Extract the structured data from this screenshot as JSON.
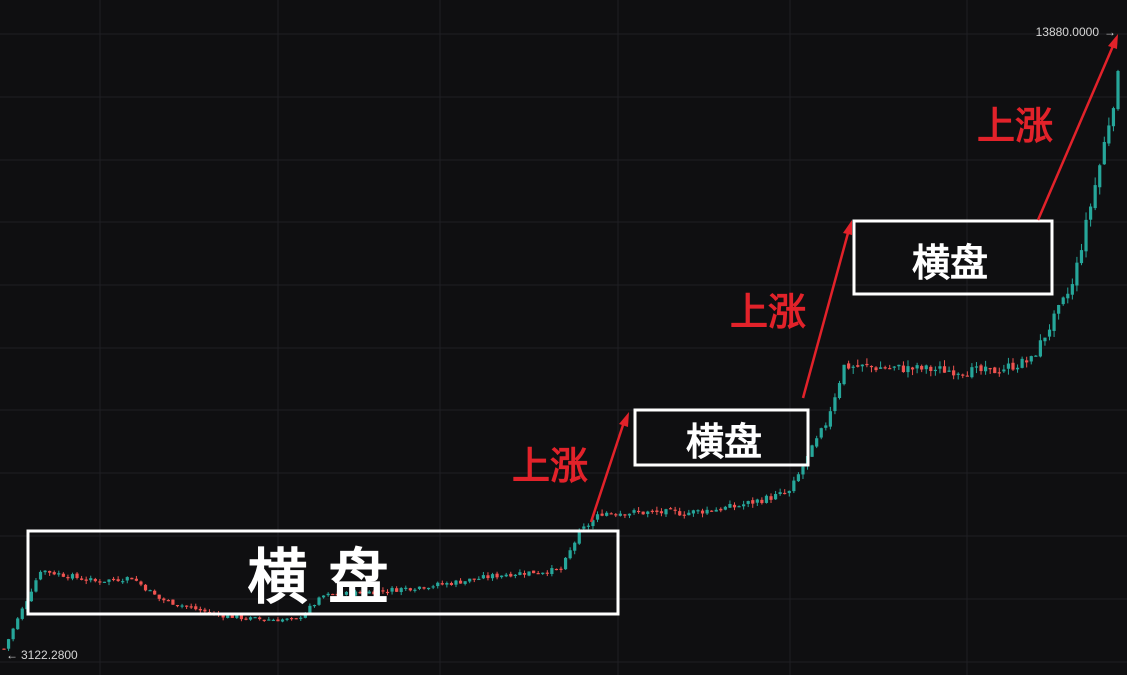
{
  "chart_data": {
    "type": "candlestick",
    "price_range": [
      3122.28,
      13880.0
    ],
    "max_price_label": "13880.0000",
    "max_arrow": "→",
    "min_price_label": "3122.2800",
    "min_arrow": "←",
    "grid": true,
    "colors": {
      "background": "#0f0f11",
      "up": "#26a69a",
      "down": "#ef5350",
      "grid": "#1f1f24",
      "annotation_arrow": "#e2222a",
      "box_border": "#ffffff"
    },
    "annotations": {
      "consolidation_label_wide": "横 盘",
      "consolidation_label": "横盘",
      "rise_label": "上涨"
    },
    "price_path": [
      {
        "candle": 0,
        "price": 3180
      },
      {
        "candle": 8,
        "price": 4550
      },
      {
        "candle": 20,
        "price": 4350
      },
      {
        "candle": 28,
        "price": 4420
      },
      {
        "candle": 34,
        "price": 4050
      },
      {
        "candle": 46,
        "price": 3780
      },
      {
        "candle": 54,
        "price": 3700
      },
      {
        "candle": 64,
        "price": 3680
      },
      {
        "candle": 70,
        "price": 4100
      },
      {
        "candle": 82,
        "price": 4180
      },
      {
        "candle": 96,
        "price": 4300
      },
      {
        "candle": 110,
        "price": 4480
      },
      {
        "candle": 122,
        "price": 4550
      },
      {
        "candle": 126,
        "price": 5200
      },
      {
        "candle": 131,
        "price": 5550
      },
      {
        "candle": 150,
        "price": 5550
      },
      {
        "candle": 160,
        "price": 5650
      },
      {
        "candle": 172,
        "price": 5900
      },
      {
        "candle": 180,
        "price": 7100
      },
      {
        "candle": 184,
        "price": 8100
      },
      {
        "candle": 200,
        "price": 8050
      },
      {
        "candle": 216,
        "price": 8000
      },
      {
        "candle": 225,
        "price": 8200
      },
      {
        "candle": 234,
        "price": 9500
      },
      {
        "candle": 240,
        "price": 11600
      },
      {
        "candle": 244,
        "price": 13100
      }
    ]
  }
}
